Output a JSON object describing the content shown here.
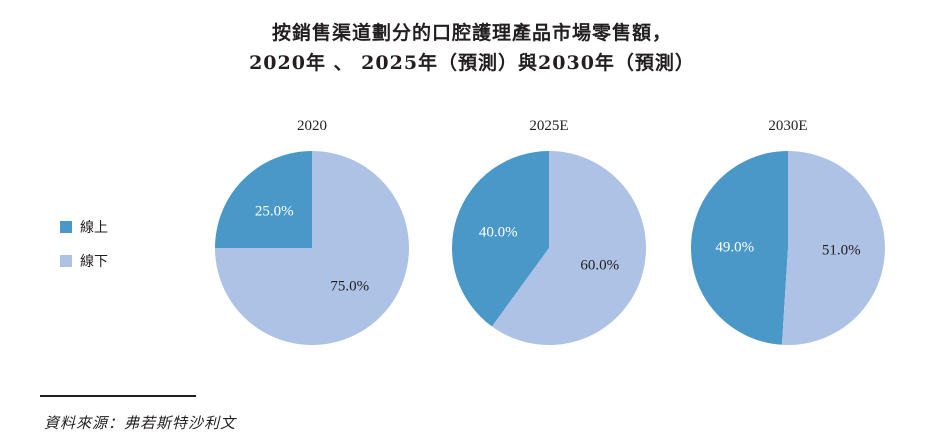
{
  "title_line1": "按銷售渠道劃分的口腔護理產品市場零售額，",
  "title_line2": "2020年 、 2025年（預測）與2030年（預測）",
  "source": "資料來源：弗若斯特沙利文",
  "colors": {
    "online": "#4a98c8",
    "offline": "#adc2e4",
    "text": "#231f20"
  },
  "chart_data": {
    "type": "pie",
    "series_names": [
      "線上",
      "線下"
    ],
    "legend_position": "left",
    "charts": [
      {
        "label": "2020",
        "slices": [
          {
            "name": "線上",
            "value": 25.0,
            "label": "25.0%"
          },
          {
            "name": "線下",
            "value": 75.0,
            "label": "75.0%"
          }
        ]
      },
      {
        "label": "2025E",
        "slices": [
          {
            "name": "線上",
            "value": 40.0,
            "label": "40.0%"
          },
          {
            "name": "線下",
            "value": 60.0,
            "label": "60.0%"
          }
        ]
      },
      {
        "label": "2030E",
        "slices": [
          {
            "name": "線上",
            "value": 49.0,
            "label": "49.0%"
          },
          {
            "name": "線下",
            "value": 51.0,
            "label": "51.0%"
          }
        ]
      }
    ]
  }
}
